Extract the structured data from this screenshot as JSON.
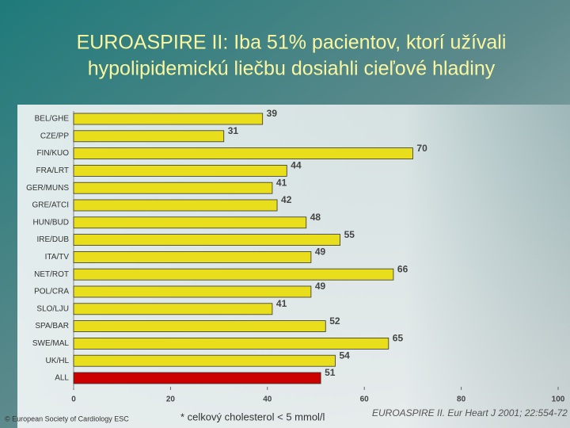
{
  "chart_data": {
    "type": "bar",
    "orientation": "horizontal",
    "title": [
      "EUROASPIRE II: Iba 51% pacientov, ktorí užívali",
      "hypolipidemickú liečbu dosiahli cieľové hladiny"
    ],
    "categories": [
      "BEL/GHE",
      "CZE/PP",
      "FIN/KUO",
      "FRA/LRT",
      "GER/MUNS",
      "GRE/ATCI",
      "HUN/BUD",
      "IRE/DUB",
      "ITA/TV",
      "NET/ROT",
      "POL/CRA",
      "SLO/LJU",
      "SPA/BAR",
      "SWE/MAL",
      "UK/HL",
      "ALL"
    ],
    "values": [
      39,
      31,
      70,
      44,
      41,
      42,
      48,
      55,
      49,
      66,
      49,
      41,
      52,
      65,
      54,
      51
    ],
    "colors": [
      "#e8de1c",
      "#e8de1c",
      "#e8de1c",
      "#e8de1c",
      "#e8de1c",
      "#e8de1c",
      "#e8de1c",
      "#e8de1c",
      "#e8de1c",
      "#e8de1c",
      "#e8de1c",
      "#e8de1c",
      "#e8de1c",
      "#e8de1c",
      "#e8de1c",
      "#cc0000"
    ],
    "xlim": [
      0,
      100
    ],
    "xticks": [
      0,
      20,
      40,
      60,
      80,
      100
    ],
    "footnotes": [
      "© European Society of Cardiology ESC",
      "* celkový cholesterol < 5 mmol/l",
      "EUROASPIRE II. Eur Heart J 2001; 22:554-72"
    ]
  }
}
